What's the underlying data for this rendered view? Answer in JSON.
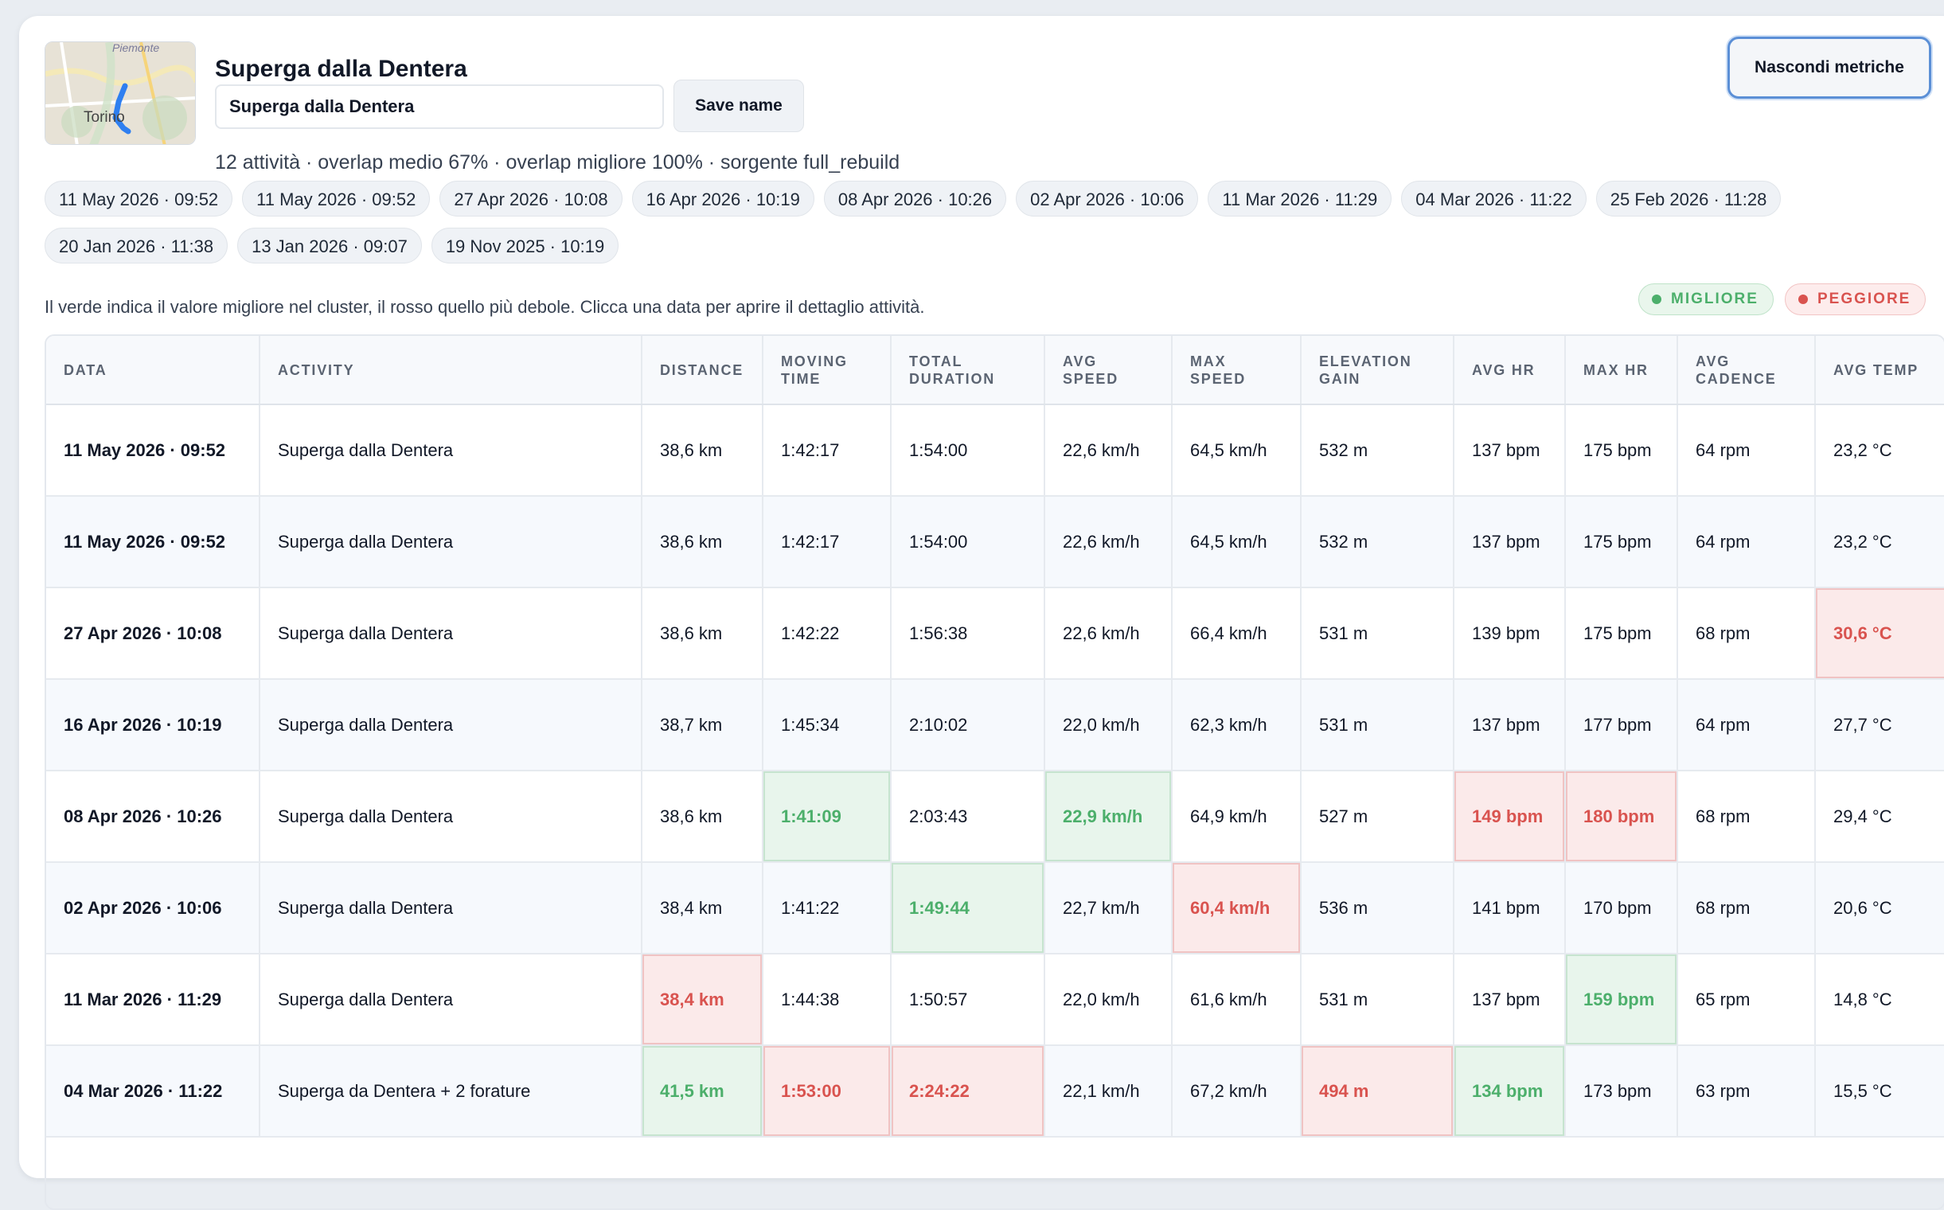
{
  "header": {
    "title": "Superga dalla Dentera",
    "name_value": "Superga dalla Dentera",
    "save_label": "Save name",
    "subtitle": "12 attività · overlap medio 67% · overlap migliore 100% · sorgente full_rebuild",
    "hide_metrics_label": "Nascondi metriche",
    "map": {
      "region_label": "Piemonte",
      "city_label": "Torino"
    }
  },
  "dates": [
    "11 May 2026 · 09:52",
    "11 May 2026 · 09:52",
    "27 Apr 2026 · 10:08",
    "16 Apr 2026 · 10:19",
    "08 Apr 2026 · 10:26",
    "02 Apr 2026 · 10:06",
    "11 Mar 2026 · 11:29",
    "04 Mar 2026 · 11:22",
    "25 Feb 2026 · 11:28",
    "20 Jan 2026 · 11:38",
    "13 Jan 2026 · 09:07",
    "19 Nov 2025 · 10:19"
  ],
  "legend": {
    "text": "Il verde indica il valore migliore nel cluster, il rosso quello più debole. Clicca una data per aprire il dettaglio attività.",
    "best_label": "MIGLIORE",
    "worst_label": "PEGGIORE"
  },
  "colors": {
    "best": "#4caf6b",
    "worst": "#d9534f",
    "accent": "#5b8fd6"
  },
  "table": {
    "columns": [
      "DATA",
      "ACTIVITY",
      "DISTANCE",
      "MOVING TIME",
      "TOTAL DURATION",
      "AVG SPEED",
      "MAX SPEED",
      "ELEVATION GAIN",
      "AVG HR",
      "MAX HR",
      "AVG CADENCE",
      "AVG TEMP"
    ],
    "rows": [
      {
        "cells": [
          "11 May 2026 · 09:52",
          "Superga dalla Dentera",
          "38,6 km",
          "1:42:17",
          "1:54:00",
          "22,6 km/h",
          "64,5 km/h",
          "532 m",
          "137 bpm",
          "175 bpm",
          "64 rpm",
          "23,2 °C"
        ],
        "marks": {}
      },
      {
        "cells": [
          "11 May 2026 · 09:52",
          "Superga dalla Dentera",
          "38,6 km",
          "1:42:17",
          "1:54:00",
          "22,6 km/h",
          "64,5 km/h",
          "532 m",
          "137 bpm",
          "175 bpm",
          "64 rpm",
          "23,2 °C"
        ],
        "marks": {}
      },
      {
        "cells": [
          "27 Apr 2026 · 10:08",
          "Superga dalla Dentera",
          "38,6 km",
          "1:42:22",
          "1:56:38",
          "22,6 km/h",
          "66,4 km/h",
          "531 m",
          "139 bpm",
          "175 bpm",
          "68 rpm",
          "30,6 °C"
        ],
        "marks": {
          "11": "worst"
        }
      },
      {
        "cells": [
          "16 Apr 2026 · 10:19",
          "Superga dalla Dentera",
          "38,7 km",
          "1:45:34",
          "2:10:02",
          "22,0 km/h",
          "62,3 km/h",
          "531 m",
          "137 bpm",
          "177 bpm",
          "64 rpm",
          "27,7 °C"
        ],
        "marks": {}
      },
      {
        "cells": [
          "08 Apr 2026 · 10:26",
          "Superga dalla Dentera",
          "38,6 km",
          "1:41:09",
          "2:03:43",
          "22,9 km/h",
          "64,9 km/h",
          "527 m",
          "149 bpm",
          "180 bpm",
          "68 rpm",
          "29,4 °C"
        ],
        "marks": {
          "3": "best",
          "5": "best",
          "8": "worst",
          "9": "worst"
        }
      },
      {
        "cells": [
          "02 Apr 2026 · 10:06",
          "Superga dalla Dentera",
          "38,4 km",
          "1:41:22",
          "1:49:44",
          "22,7 km/h",
          "60,4 km/h",
          "536 m",
          "141 bpm",
          "170 bpm",
          "68 rpm",
          "20,6 °C"
        ],
        "marks": {
          "4": "best",
          "6": "worst"
        }
      },
      {
        "cells": [
          "11 Mar 2026 · 11:29",
          "Superga dalla Dentera",
          "38,4 km",
          "1:44:38",
          "1:50:57",
          "22,0 km/h",
          "61,6 km/h",
          "531 m",
          "137 bpm",
          "159 bpm",
          "65 rpm",
          "14,8 °C"
        ],
        "marks": {
          "2": "worst",
          "9": "best"
        }
      },
      {
        "cells": [
          "04 Mar 2026 · 11:22",
          "Superga da Dentera + 2 forature",
          "41,5 km",
          "1:53:00",
          "2:24:22",
          "22,1 km/h",
          "67,2 km/h",
          "494 m",
          "134 bpm",
          "173 bpm",
          "63 rpm",
          "15,5 °C"
        ],
        "marks": {
          "2": "best",
          "3": "worst",
          "4": "worst",
          "7": "worst",
          "8": "best"
        }
      }
    ]
  }
}
